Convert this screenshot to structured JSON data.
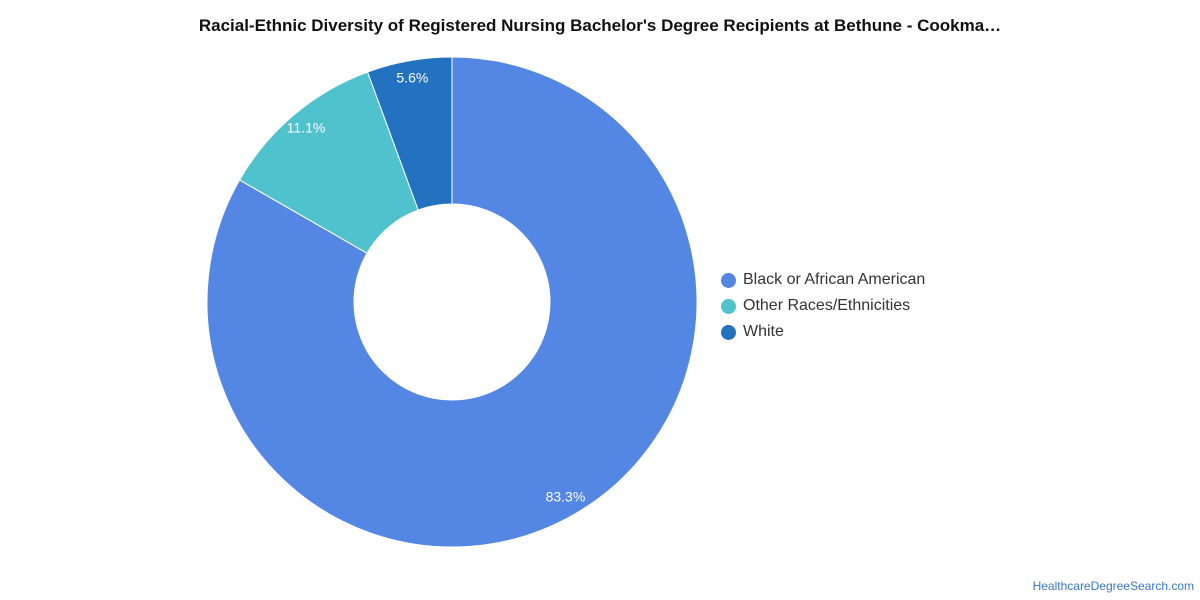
{
  "chart_data": {
    "type": "pie",
    "title": "Racial-Ethnic Diversity of Registered Nursing Bachelor's Degree Recipients at Bethune - Cookma…",
    "donut": true,
    "legend_position": "right",
    "slices": [
      {
        "name": "Black or African American",
        "value": 83.3,
        "label": "83.3%",
        "color": "#5486e3"
      },
      {
        "name": "Other Races/Ethnicities",
        "value": 11.1,
        "label": "11.1%",
        "color": "#50c2cd"
      },
      {
        "name": "White",
        "value": 5.6,
        "label": "5.6%",
        "color": "#2272bf"
      }
    ]
  },
  "footer": {
    "source": "HealthcareDegreeSearch.com"
  }
}
